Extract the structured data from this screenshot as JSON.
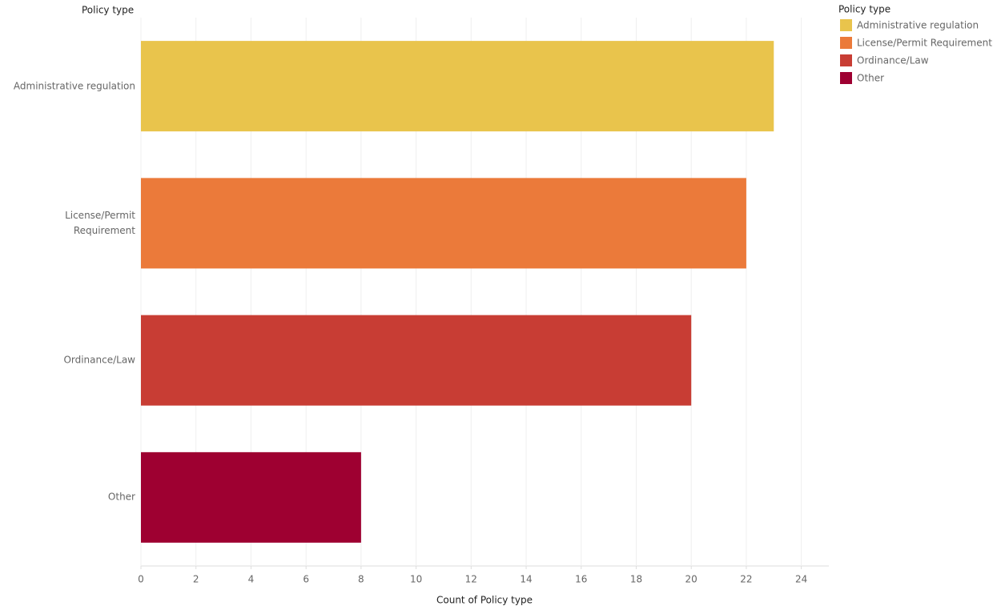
{
  "chart_data": {
    "type": "bar",
    "orientation": "horizontal",
    "ylabel": "Policy type",
    "xlabel": "Count of Policy type",
    "legend_title": "Policy type",
    "categories": [
      "Administrative regulation",
      "License/Permit Requirement",
      "Ordinance/Law",
      "Other"
    ],
    "values": [
      23,
      22,
      20,
      8
    ],
    "colors": [
      "#e9c44c",
      "#eb7a3a",
      "#c83d34",
      "#9e0031"
    ],
    "xlim": [
      0,
      25
    ],
    "xticks": [
      0,
      2,
      4,
      6,
      8,
      10,
      12,
      14,
      16,
      18,
      20,
      22,
      24
    ],
    "grid": true,
    "legend": "top-right"
  }
}
